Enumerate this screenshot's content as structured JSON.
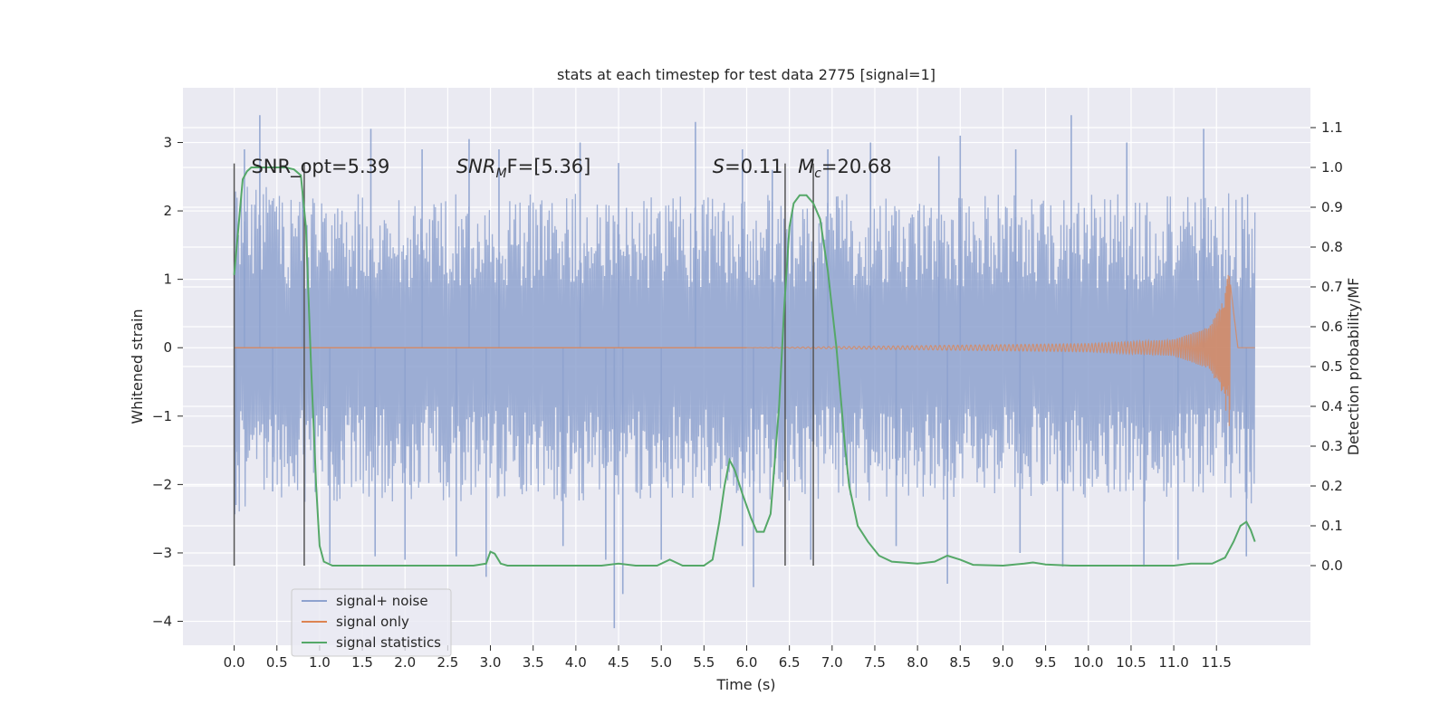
{
  "chart_data": {
    "type": "line",
    "title": "stats at each timestep for test data 2775 [signal=1]",
    "xlabel": "Time (s)",
    "ylabel": "Whitened strain",
    "ylabel_right": "Detection probability/MF",
    "xlim": [
      -0.6,
      12.6
    ],
    "ylim": [
      -4.35,
      3.8
    ],
    "ylim_right": [
      -0.2,
      1.2
    ],
    "x_ticks": [
      0.0,
      0.5,
      1.0,
      1.5,
      2.0,
      2.5,
      3.0,
      3.5,
      4.0,
      4.5,
      5.0,
      5.5,
      6.0,
      6.5,
      7.0,
      7.5,
      8.0,
      8.5,
      9.0,
      9.5,
      10.0,
      10.5,
      11.0,
      11.5
    ],
    "x_tick_labels": [
      "0.0",
      "0.5",
      "1.0",
      "1.5",
      "2.0",
      "2.5",
      "3.0",
      "3.5",
      "4.0",
      "4.5",
      "5.0",
      "5.5",
      "6.0",
      "6.5",
      "7.0",
      "7.5",
      "8.0",
      "8.5",
      "9.0",
      "9.5",
      "10.0",
      "10.5",
      "11.0",
      "11.5"
    ],
    "y_ticks": [
      3,
      2,
      1,
      0,
      -1,
      -2,
      -3,
      -4
    ],
    "y_tick_labels": [
      "3",
      "2",
      "1",
      "0",
      "−1",
      "−2",
      "−3",
      "−4"
    ],
    "y_right_ticks": [
      1.1,
      1.0,
      0.9,
      0.8,
      0.7,
      0.6,
      0.5,
      0.4,
      0.3,
      0.2,
      0.1,
      0.0
    ],
    "y_right_tick_labels": [
      "1.1",
      "1.0",
      "0.9",
      "0.8",
      "0.7",
      "0.6",
      "0.5",
      "0.4",
      "0.3",
      "0.2",
      "0.1",
      "0.0"
    ],
    "grid": true,
    "legend_position": "lower-left",
    "series": [
      {
        "name": "signal+ noise",
        "color": "#8ea2cf",
        "x_range": [
          0.0,
          11.95
        ],
        "band_upper": [
          [
            0.0,
            1.7
          ],
          [
            0.5,
            1.6
          ],
          [
            1.0,
            1.55
          ],
          [
            2.0,
            1.55
          ],
          [
            3.0,
            1.55
          ],
          [
            4.0,
            1.55
          ],
          [
            5.0,
            1.55
          ],
          [
            6.0,
            1.55
          ],
          [
            7.0,
            1.55
          ],
          [
            8.0,
            1.55
          ],
          [
            9.0,
            1.55
          ],
          [
            10.0,
            1.55
          ],
          [
            11.0,
            1.55
          ],
          [
            11.95,
            1.6
          ]
        ],
        "band_lower": [
          [
            0.0,
            -1.7
          ],
          [
            0.5,
            -1.6
          ],
          [
            1.0,
            -1.55
          ],
          [
            2.0,
            -1.55
          ],
          [
            3.0,
            -1.55
          ],
          [
            4.0,
            -1.55
          ],
          [
            5.0,
            -1.55
          ],
          [
            6.0,
            -1.55
          ],
          [
            7.0,
            -1.55
          ],
          [
            8.0,
            -1.55
          ],
          [
            9.0,
            -1.55
          ],
          [
            10.0,
            -1.55
          ],
          [
            11.0,
            -1.55
          ],
          [
            11.95,
            -1.6
          ]
        ],
        "spikes_up": [
          [
            0.12,
            2.9
          ],
          [
            0.3,
            3.4
          ],
          [
            0.8,
            2.3
          ],
          [
            1.6,
            3.2
          ],
          [
            2.2,
            2.9
          ],
          [
            2.75,
            3.05
          ],
          [
            3.1,
            2.9
          ],
          [
            4.05,
            3.0
          ],
          [
            4.5,
            2.7
          ],
          [
            5.4,
            3.3
          ],
          [
            5.95,
            2.9
          ],
          [
            6.3,
            2.6
          ],
          [
            6.95,
            2.9
          ],
          [
            7.45,
            3.0
          ],
          [
            8.25,
            2.8
          ],
          [
            8.5,
            3.1
          ],
          [
            9.15,
            2.9
          ],
          [
            9.8,
            3.4
          ],
          [
            10.45,
            3.0
          ],
          [
            11.35,
            3.2
          ],
          [
            11.8,
            2.2
          ]
        ],
        "spikes_down": [
          [
            0.02,
            -2.3
          ],
          [
            0.45,
            -2.1
          ],
          [
            1.12,
            -3.15
          ],
          [
            1.65,
            -3.05
          ],
          [
            2.0,
            -3.1
          ],
          [
            2.6,
            -3.05
          ],
          [
            2.95,
            -3.35
          ],
          [
            3.85,
            -2.9
          ],
          [
            4.35,
            -3.1
          ],
          [
            4.45,
            -4.1
          ],
          [
            4.55,
            -3.6
          ],
          [
            5.0,
            -3.1
          ],
          [
            5.95,
            -2.9
          ],
          [
            6.08,
            -3.5
          ],
          [
            6.75,
            -3.1
          ],
          [
            7.75,
            -2.9
          ],
          [
            8.35,
            -3.45
          ],
          [
            9.2,
            -3.0
          ],
          [
            9.7,
            -3.2
          ],
          [
            10.65,
            -3.2
          ],
          [
            11.05,
            -3.1
          ],
          [
            11.85,
            -3.05
          ]
        ]
      },
      {
        "name": "signal only",
        "color": "#dd8452",
        "chirp_start": 6.0,
        "chirp_peak_t": 11.65,
        "chirp_end": 11.95,
        "amplitude_envelope": [
          [
            6.0,
            0.0
          ],
          [
            8.0,
            0.03
          ],
          [
            10.0,
            0.06
          ],
          [
            11.0,
            0.12
          ],
          [
            11.4,
            0.3
          ],
          [
            11.55,
            0.6
          ],
          [
            11.65,
            1.15
          ],
          [
            11.75,
            0.0
          ]
        ]
      },
      {
        "name": "signal statistics",
        "color": "#55a868",
        "axis": "right",
        "points": [
          [
            0.0,
            0.73
          ],
          [
            0.05,
            0.85
          ],
          [
            0.1,
            0.97
          ],
          [
            0.15,
            0.99
          ],
          [
            0.2,
            1.0
          ],
          [
            0.6,
            1.0
          ],
          [
            0.7,
            0.995
          ],
          [
            0.78,
            0.98
          ],
          [
            0.84,
            0.85
          ],
          [
            0.9,
            0.5
          ],
          [
            0.96,
            0.2
          ],
          [
            1.0,
            0.05
          ],
          [
            1.05,
            0.01
          ],
          [
            1.15,
            0.0
          ],
          [
            2.8,
            0.0
          ],
          [
            2.95,
            0.005
          ],
          [
            3.0,
            0.035
          ],
          [
            3.05,
            0.03
          ],
          [
            3.12,
            0.005
          ],
          [
            3.2,
            0.0
          ],
          [
            4.3,
            0.0
          ],
          [
            4.5,
            0.005
          ],
          [
            4.7,
            0.0
          ],
          [
            4.95,
            0.0
          ],
          [
            5.1,
            0.015
          ],
          [
            5.25,
            0.0
          ],
          [
            5.5,
            0.0
          ],
          [
            5.6,
            0.015
          ],
          [
            5.68,
            0.11
          ],
          [
            5.74,
            0.2
          ],
          [
            5.8,
            0.265
          ],
          [
            5.86,
            0.24
          ],
          [
            5.95,
            0.18
          ],
          [
            6.05,
            0.12
          ],
          [
            6.12,
            0.085
          ],
          [
            6.2,
            0.085
          ],
          [
            6.28,
            0.13
          ],
          [
            6.38,
            0.4
          ],
          [
            6.44,
            0.65
          ],
          [
            6.5,
            0.85
          ],
          [
            6.55,
            0.91
          ],
          [
            6.62,
            0.93
          ],
          [
            6.7,
            0.93
          ],
          [
            6.78,
            0.91
          ],
          [
            6.86,
            0.87
          ],
          [
            6.95,
            0.74
          ],
          [
            7.05,
            0.55
          ],
          [
            7.15,
            0.3
          ],
          [
            7.2,
            0.2
          ],
          [
            7.3,
            0.1
          ],
          [
            7.42,
            0.06
          ],
          [
            7.55,
            0.025
          ],
          [
            7.7,
            0.01
          ],
          [
            8.0,
            0.005
          ],
          [
            8.2,
            0.01
          ],
          [
            8.35,
            0.025
          ],
          [
            8.5,
            0.015
          ],
          [
            8.65,
            0.002
          ],
          [
            9.0,
            0.0
          ],
          [
            9.25,
            0.005
          ],
          [
            9.35,
            0.008
          ],
          [
            9.5,
            0.003
          ],
          [
            9.8,
            0.0
          ],
          [
            11.0,
            0.0
          ],
          [
            11.2,
            0.005
          ],
          [
            11.45,
            0.005
          ],
          [
            11.6,
            0.02
          ],
          [
            11.7,
            0.06
          ],
          [
            11.78,
            0.1
          ],
          [
            11.85,
            0.11
          ],
          [
            11.9,
            0.09
          ],
          [
            11.95,
            0.06
          ]
        ]
      }
    ],
    "vertical_lines": [
      0.0,
      0.82,
      6.45,
      6.78
    ],
    "annotations": [
      {
        "t": 0.2,
        "y": 2.65,
        "text": "SNR_opt=5.39"
      },
      {
        "t": 2.6,
        "y": 2.65,
        "italic": "SNR",
        "sub": "M",
        "after": "F=[5.36]"
      },
      {
        "t": 5.6,
        "y": 2.65,
        "italic": "S",
        "after": "=0.11"
      },
      {
        "t": 6.6,
        "y": 2.65,
        "italic": "M",
        "sub": "c",
        "after": "=20.68"
      }
    ]
  }
}
